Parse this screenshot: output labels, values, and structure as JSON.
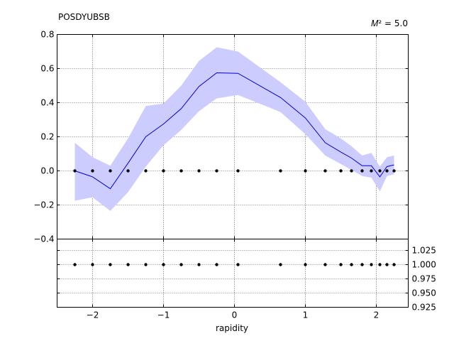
{
  "chart_data": {
    "type": "line",
    "title": "POSDYUBSB",
    "annotation": "𝑀² = 5.0",
    "xlabel": "rapidity",
    "xlim": [
      -2.5,
      2.45
    ],
    "xticks": [
      -2,
      -1,
      0,
      1,
      2
    ],
    "xtick_labels": [
      "−2",
      "−1",
      "0",
      "1",
      "2"
    ],
    "grid": true,
    "main_panel": {
      "ylim": [
        -0.4,
        0.8
      ],
      "yticks": [
        -0.4,
        -0.2,
        0.0,
        0.2,
        0.4,
        0.6,
        0.8
      ],
      "ytick_labels": [
        "−0.4",
        "−0.2",
        "0.0",
        "0.2",
        "0.4",
        "0.6",
        "0.8"
      ],
      "series": [
        {
          "color": "#0000dd",
          "x": [
            -2.25,
            -2.0,
            -1.75,
            -1.5,
            -1.25,
            -1.0,
            -0.75,
            -0.5,
            -0.25,
            0.05,
            0.65,
            1.0,
            1.28,
            1.5,
            1.65,
            1.8,
            1.93,
            2.05,
            2.15,
            2.25
          ],
          "y": [
            0.0,
            -0.035,
            -0.105,
            0.045,
            0.2,
            0.275,
            0.365,
            0.495,
            0.575,
            0.572,
            0.43,
            0.31,
            0.165,
            0.11,
            0.075,
            0.03,
            0.03,
            -0.035,
            0.025,
            0.035
          ],
          "upper": [
            0.165,
            0.08,
            0.03,
            0.19,
            0.38,
            0.395,
            0.5,
            0.645,
            0.725,
            0.7,
            0.52,
            0.405,
            0.245,
            0.19,
            0.145,
            0.09,
            0.105,
            0.025,
            0.08,
            0.09
          ],
          "lower": [
            -0.175,
            -0.155,
            -0.235,
            -0.125,
            0.025,
            0.15,
            0.24,
            0.35,
            0.425,
            0.445,
            0.345,
            0.215,
            0.09,
            0.04,
            0.005,
            -0.03,
            -0.04,
            -0.12,
            -0.03,
            -0.02
          ]
        }
      ],
      "points": {
        "color": "#000000",
        "x": [
          -2.25,
          -2.0,
          -1.75,
          -1.5,
          -1.25,
          -1.0,
          -0.75,
          -0.5,
          -0.25,
          0.05,
          0.65,
          1.0,
          1.28,
          1.5,
          1.65,
          1.8,
          1.93,
          2.05,
          2.15,
          2.25
        ],
        "y": [
          0,
          0,
          0,
          0,
          0,
          0,
          0,
          0,
          0,
          0,
          0,
          0,
          0,
          0,
          0,
          0,
          0,
          0,
          0,
          0
        ]
      }
    },
    "ratio_panel": {
      "ylim": [
        0.925,
        1.045
      ],
      "yticks": [
        0.925,
        0.95,
        0.975,
        1.0,
        1.025
      ],
      "ytick_labels": [
        "0.925",
        "0.950",
        "0.975",
        "1.000",
        "1.025"
      ],
      "points": {
        "color": "#000000",
        "x": [
          -2.25,
          -2.0,
          -1.75,
          -1.5,
          -1.25,
          -1.0,
          -0.75,
          -0.5,
          -0.25,
          0.05,
          0.65,
          1.0,
          1.28,
          1.5,
          1.65,
          1.8,
          1.93,
          2.05,
          2.15,
          2.25
        ],
        "y": [
          1,
          1,
          1,
          1,
          1,
          1,
          1,
          1,
          1,
          1,
          1,
          1,
          1,
          1,
          1,
          1,
          1,
          1,
          1,
          1
        ]
      }
    },
    "band_color": "#ccccff"
  }
}
